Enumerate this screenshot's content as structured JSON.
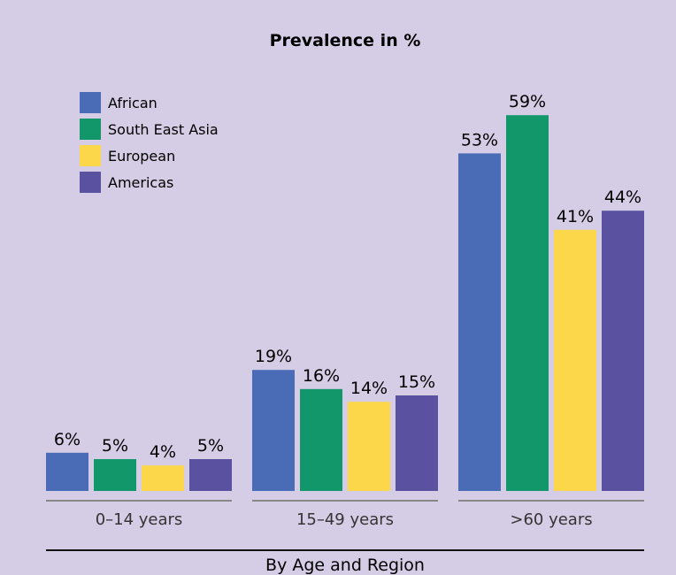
{
  "chart_data": {
    "type": "bar",
    "title": "Prevalence in %",
    "xlabel": "By Age and Region",
    "ylabel": "",
    "ylim": [
      0,
      70
    ],
    "categories": [
      "0–14 years",
      "15–49 years",
      ">60 years"
    ],
    "series": [
      {
        "name": "African",
        "values": [
          6,
          19,
          53
        ],
        "labels": [
          "6%",
          "19%",
          "53%"
        ],
        "color": "#4a6bb6"
      },
      {
        "name": "South East Asia",
        "values": [
          5,
          16,
          59
        ],
        "labels": [
          "5%",
          "16%",
          "59%"
        ],
        "color": "#12976b"
      },
      {
        "name": "European",
        "values": [
          4,
          14,
          41
        ],
        "labels": [
          "4%",
          "14%",
          "41%"
        ],
        "color": "#fdd74a"
      },
      {
        "name": "Americas",
        "values": [
          5,
          15,
          44
        ],
        "labels": [
          "5%",
          "15%",
          "44%"
        ],
        "color": "#5a51a0"
      }
    ],
    "legend": "top-left",
    "grid": false
  }
}
